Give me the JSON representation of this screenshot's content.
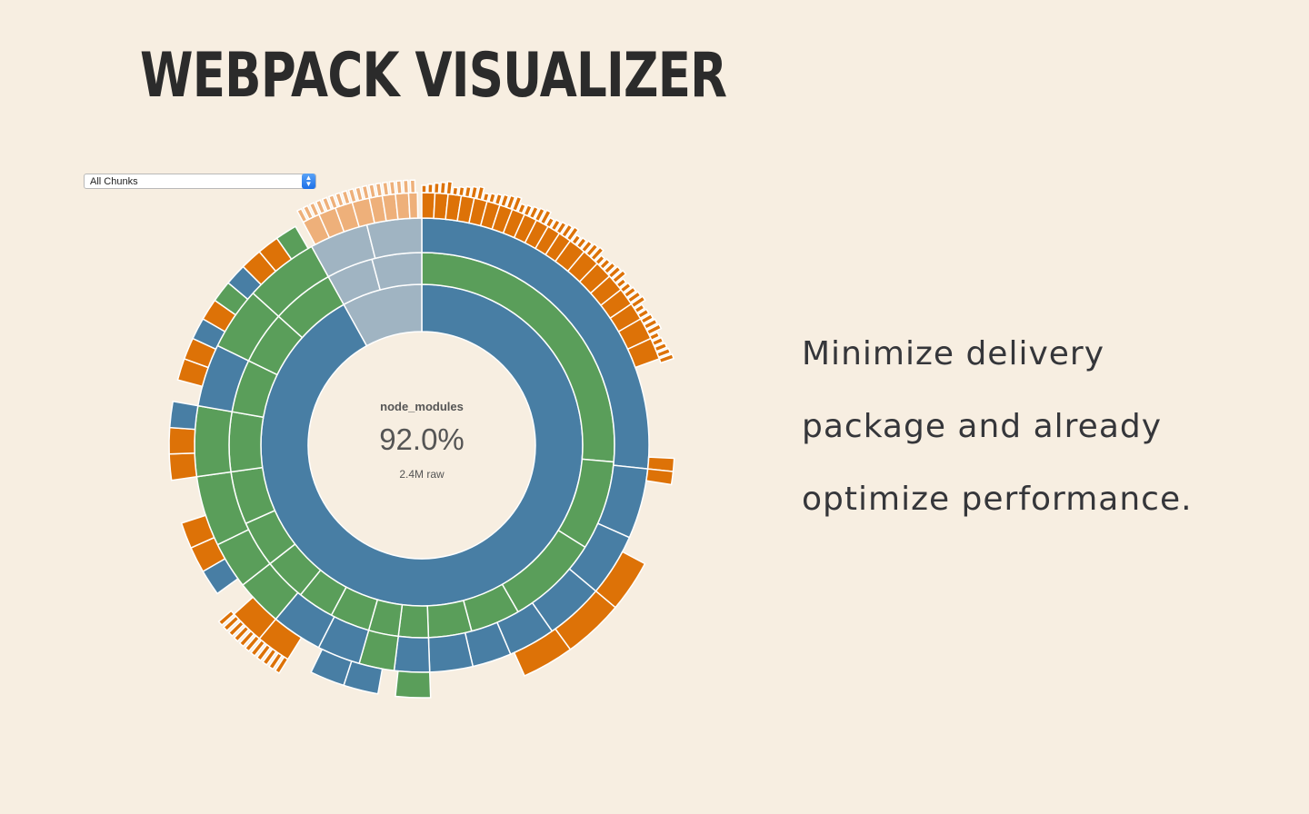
{
  "header": {
    "title": "WEBPACK VISUALIZER"
  },
  "chunk_select": {
    "selected": "All Chunks"
  },
  "center": {
    "name": "node_modules",
    "percentage": "92.0%",
    "size": "2.4M raw"
  },
  "tagline": {
    "lines": [
      "Minimize delivery",
      "package and already",
      "optimize performance."
    ]
  },
  "colors": {
    "background": "#f7eee1",
    "blue": "#487ea4",
    "green": "#5a9e5a",
    "orange": "#dd7207",
    "grey_blue": "#a0b4c2",
    "light_orange": "#eeb07a"
  },
  "chart_data": {
    "type": "sunburst",
    "root": "node_modules",
    "root_share": "92.0%",
    "root_size": "2.4M raw"
  }
}
